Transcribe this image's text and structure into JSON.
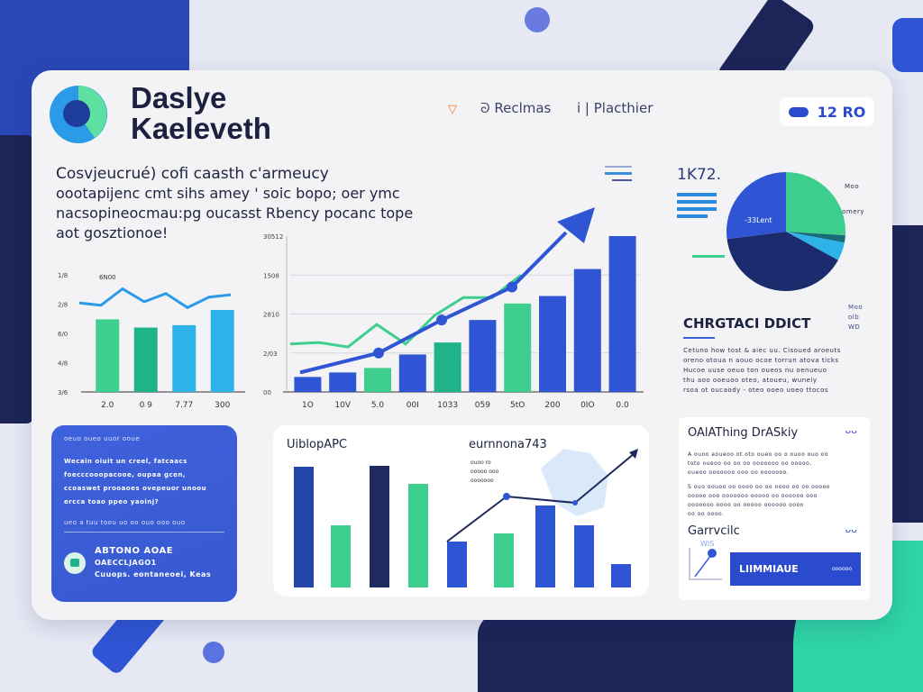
{
  "header": {
    "title_line1": "Daslye",
    "title_line2": "Kaeleveth",
    "nav": [
      {
        "label": "Reclmas"
      },
      {
        "label": "Placthier"
      }
    ],
    "badge": "12 RO"
  },
  "intro": {
    "lines": [
      "Cosvjeucrué) cofi caasth  c'armeucy",
      "oootapiјenc cmt sihs amey ' soic bopo; oer ymc",
      "nacsopineocmau:pg  oucasst Rbency pocanc tope",
      "aot gosztionoe!"
    ]
  },
  "kpi": {
    "value": "1K72.",
    "pie_label": "-33Lent",
    "pie_side_labels": [
      "Moo",
      "somery"
    ],
    "right_labels": [
      "Moo",
      "olb",
      "WD"
    ]
  },
  "section": {
    "title": "CHRGTACI DDICT",
    "text": [
      "Cetuno how tost & aiec uu. Cisoued aroeuts",
      "oreno otoua n aouo ocoe torrun atova ticks",
      "Hucoe uuse oeuo ton oueos nu oenueuo",
      "thu aoo ooeuoo oteo, atoueu, wuneiy",
      "rsoa ot oucaody  - oteo ooeo uoeo ttocos"
    ]
  },
  "blue_card": {
    "heading": "oeuo oueo uuor ooue",
    "text": [
      "Wecain oiuit un creel, fatcaacs",
      "foecccooopacooe, oupaa gcen,",
      "ccoaswet prooaoes ovepeuor unoou",
      "ercca toao ppeo yaoinj?"
    ],
    "footer": "ueo a tuu toou uo oo  ouo ooo ouo",
    "contact": [
      "ABTONO AOAE",
      "OAECCLJAGO1",
      "Cuuops. eontaneoei, Keas"
    ]
  },
  "note_card": {
    "title": "OAlAThing DrASkiy",
    "text1": [
      "A ouoo aoueoo ot oto oueo oo o ouoo ouo oo",
      "toto oueoo oo oo oo ooooooo oo ooooo,",
      "oueoo ooooooo ooo oo ooooooo."
    ],
    "text2": [
      "S ouo oouoo oo oooo oo oo oooo oo oo ooooo",
      "ooooo ooo ooooooo ooooo oo oooooo ooo",
      "ooooooo oooo oo ooooo oooooo oooo",
      "oo oo oooo."
    ],
    "sub_title": "Garrvcilc",
    "mini_label": "WIS",
    "box_label": "LIIMMIAUE",
    "box_note": "oooooo"
  },
  "colors": {
    "navy": "#1c2a6e",
    "blue": "#2f55d4",
    "green": "#3ecf8e",
    "teal": "#1fb38a",
    "cyan": "#2eb3e8",
    "accent_orange": "#f07a2a"
  },
  "chart_data": [
    {
      "type": "bar",
      "name": "small-chart",
      "yticks": [
        "1/8",
        "2/8",
        "6/0",
        "4/8",
        "3/6"
      ],
      "categories": [
        "2.0",
        "0 9",
        "7.77",
        "300"
      ],
      "values": [
        62,
        55,
        57,
        70
      ],
      "line_label": "6N00",
      "line": [
        76,
        74,
        88,
        77,
        84,
        72,
        81,
        83
      ],
      "colors": [
        "green",
        "teal",
        "cyan",
        "cyan"
      ],
      "ylim": [
        0,
        100
      ]
    },
    {
      "type": "bar",
      "name": "main-chart",
      "yticks": [
        "30512",
        "1508",
        "2810",
        "2/03",
        "00"
      ],
      "categories": [
        "1O",
        "10V",
        "5.0",
        "00I",
        "1033",
        "059",
        "5tO",
        "200",
        "0IO",
        "0.0"
      ],
      "values": [
        10,
        13,
        16,
        25,
        33,
        48,
        59,
        64,
        82,
        104
      ],
      "colors": [
        "blue",
        "blue",
        "green",
        "blue",
        "teal",
        "blue",
        "green",
        "blue",
        "blue",
        "blue"
      ],
      "trend_blue": [
        13,
        26,
        48,
        70,
        115
      ],
      "trend_green": [
        32,
        33,
        30,
        45,
        32,
        51,
        63,
        63,
        78
      ],
      "ylim": [
        0,
        104
      ]
    },
    {
      "type": "pie",
      "name": "pie-chart",
      "values": [
        26,
        2,
        5,
        40,
        27
      ],
      "colors": [
        "green",
        "#1a6b7a",
        "cyan",
        "navy",
        "blue"
      ]
    },
    {
      "type": "bar",
      "name": "bottom-chart",
      "title": "UiblopAPC",
      "subtitle": "eurnnona743",
      "subtitle_notes": [
        "ouoo ro",
        "ooooo ooo",
        "ooooooo"
      ],
      "values": [
        134,
        69,
        135,
        115,
        51,
        60,
        91,
        69,
        26
      ],
      "colors": [
        "#2346a8",
        "green",
        "#1f2a5e",
        "green",
        "blue",
        "green",
        "blue",
        "blue",
        "blue"
      ],
      "trend": [
        51,
        101,
        94,
        149
      ],
      "ylim": [
        0,
        150
      ]
    }
  ]
}
